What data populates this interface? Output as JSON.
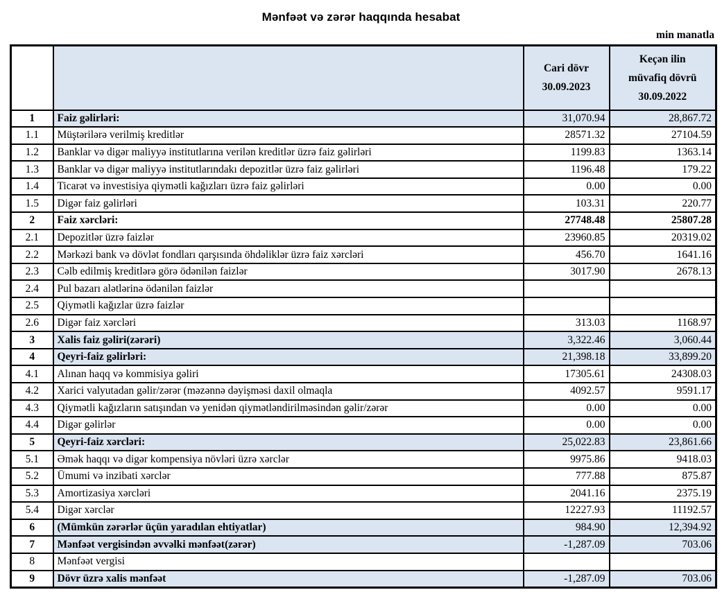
{
  "page": {
    "title": "Mənfəət və zərər haqqında hesabat",
    "unit_note": "min manatla"
  },
  "colors": {
    "section_row_bg": "#dbe5f1",
    "border": "#000000"
  },
  "table": {
    "headers": {
      "number": "",
      "label": "",
      "current": "Cari dövr\n30.09.2023",
      "previous": "Keçən ilin\nmüvafiq dövrü\n30.09.2022"
    },
    "rows": [
      {
        "no": "1",
        "label": "Faiz gəlirləri:",
        "current": "31,070.94",
        "previous": "28,867.72",
        "style": "blue"
      },
      {
        "no": "1.1",
        "label": "Müştərilərə verilmiş kreditlər",
        "current": "28571.32",
        "previous": "27104.59",
        "style": "normal"
      },
      {
        "no": "1.2",
        "label": "Banklar və digər maliyyə institutlarına verilən kreditlər üzrə faiz gəlirləri",
        "current": "1199.83",
        "previous": "1363.14",
        "style": "normal"
      },
      {
        "no": "1.3",
        "label": "Banklar və digər maliyyə institutlarındakı depozitlər üzrə faiz gəlirləri",
        "current": "1196.48",
        "previous": "179.22",
        "style": "normal"
      },
      {
        "no": "1.4",
        "label": "Ticarət və investisiya qiymətli kağızları üzrə faiz gəlirləri",
        "current": "0.00",
        "previous": "0.00",
        "style": "normal"
      },
      {
        "no": "1.5",
        "label": "Digər faiz gəlirləri",
        "current": "103.31",
        "previous": "220.77",
        "style": "normal"
      },
      {
        "no": "2",
        "label": "Faiz xərcləri:",
        "current": "27748.48",
        "previous": "25807.28",
        "style": "bold-white"
      },
      {
        "no": "2.1",
        "label": "Depozitlər üzrə faizlər",
        "current": "23960.85",
        "previous": "20319.02",
        "style": "normal"
      },
      {
        "no": "2.2",
        "label": "Mərkəzi bank və dövlət fondları qarşısında öhdəliklər üzrə faiz xərcləri",
        "current": "456.70",
        "previous": "1641.16",
        "style": "normal"
      },
      {
        "no": "2.3",
        "label": "Cəlb edilmiş kreditlərə görə ödənilən faizlər",
        "current": "3017.90",
        "previous": "2678.13",
        "style": "normal"
      },
      {
        "no": "2.4",
        "label": "Pul bazarı alətlərinə ödənilən faizlər",
        "current": "",
        "previous": "",
        "style": "normal"
      },
      {
        "no": "2.5",
        "label": "Qiymətli kağızlar üzrə faizlər",
        "current": "",
        "previous": "",
        "style": "normal"
      },
      {
        "no": "2.6",
        "label": "Digər faiz xərcləri",
        "current": "313.03",
        "previous": "1168.97",
        "style": "normal"
      },
      {
        "no": "3",
        "label": "Xalis faiz gəliri(zərəri)",
        "current": "3,322.46",
        "previous": "3,060.44",
        "style": "blue"
      },
      {
        "no": "4",
        "label": "Qeyri-faiz gəlirləri:",
        "current": "21,398.18",
        "previous": "33,899.20",
        "style": "blue"
      },
      {
        "no": "4.1",
        "label": "Alınan haqq və kommisiya gəliri",
        "current": "17305.61",
        "previous": "24308.03",
        "style": "normal"
      },
      {
        "no": "4.2",
        "label": "Xarici valyutadan gəlir/zərər (məzənnə dəyişməsi daxil olmaqla",
        "current": "4092.57",
        "previous": "9591.17",
        "style": "normal"
      },
      {
        "no": "4.3",
        "label": "Qiymətli kağızların satışından və yenidən qiymətləndirilməsindən gəlir/zərər",
        "current": "0.00",
        "previous": "0.00",
        "style": "normal"
      },
      {
        "no": "4.4",
        "label": "Digər gəlirlər",
        "current": "0.00",
        "previous": "0.00",
        "style": "normal"
      },
      {
        "no": "5",
        "label": "Qeyri-faiz xərcləri:",
        "current": "25,022.83",
        "previous": "23,861.66",
        "style": "blue"
      },
      {
        "no": "5.1",
        "label": "Əmək haqqı və digər kompensiya növləri üzrə xərclər",
        "current": "9975.86",
        "previous": "9418.03",
        "style": "normal"
      },
      {
        "no": "5.2",
        "label": "Ümumi və inzibati xərclər",
        "current": "777.88",
        "previous": "875.87",
        "style": "normal"
      },
      {
        "no": "5.3",
        "label": "Amortizasiya xərcləri",
        "current": "2041.16",
        "previous": "2375.19",
        "style": "normal"
      },
      {
        "no": "5.4",
        "label": "Digər xərclər",
        "current": "12227.93",
        "previous": "11192.57",
        "style": "normal"
      },
      {
        "no": "6",
        "label": "(Mümkün zərərlər üçün yaradılan ehtiyatlar)",
        "current": "984.90",
        "previous": "12,394.92",
        "style": "blue"
      },
      {
        "no": "7",
        "label": "Mənfəət vergisindən əvvəlki mənfəət(zərər)",
        "current": "-1,287.09",
        "previous": "703.06",
        "style": "blue"
      },
      {
        "no": "8",
        "label": "Mənfəət vergisi",
        "current": "",
        "previous": "",
        "style": "normal"
      },
      {
        "no": "9",
        "label": "Dövr üzrə xalis mənfəət",
        "current": "-1,287.09",
        "previous": "703.06",
        "style": "blue"
      }
    ]
  }
}
